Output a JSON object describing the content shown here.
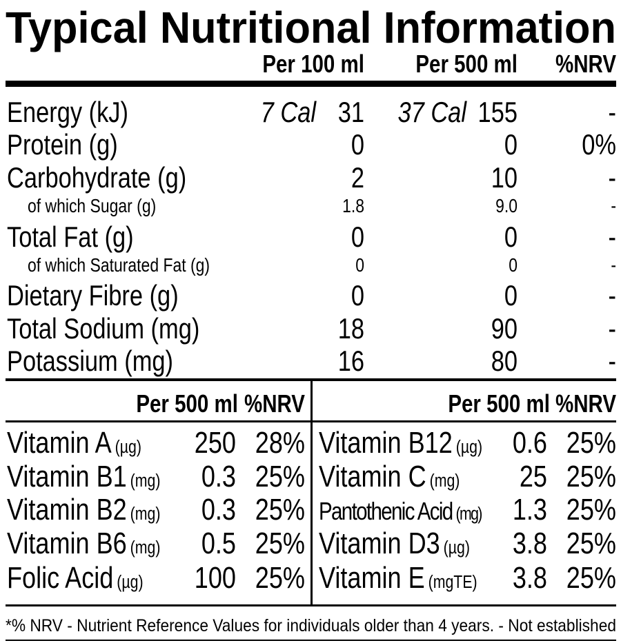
{
  "title": "Typical Nutritional Information",
  "header": {
    "columns": [
      "Per 100 ml",
      "Per 500 ml",
      "%NRV"
    ]
  },
  "rows": [
    {
      "label": "Energy (kJ)",
      "cal_100": "7 Cal",
      "per_100": "31",
      "cal_500": "37 Cal",
      "per_500": "155",
      "nrv": "-"
    },
    {
      "label": "Protein (g)",
      "per_100": "0",
      "per_500": "0",
      "nrv": "0%"
    },
    {
      "label": "Carbohydrate (g)",
      "per_100": "2",
      "per_500": "10",
      "nrv": "-"
    },
    {
      "label": "of which Sugar (g)",
      "per_100": "1.8",
      "per_500": "9.0",
      "nrv": "-",
      "sub": true
    },
    {
      "label": "Total Fat (g)",
      "per_100": "0",
      "per_500": "0",
      "nrv": "-"
    },
    {
      "label": "of which Saturated Fat (g)",
      "per_100": "0",
      "per_500": "0",
      "nrv": "-",
      "sub": true
    },
    {
      "label": "Dietary Fibre (g)",
      "per_100": "0",
      "per_500": "0",
      "nrv": "-"
    },
    {
      "label": "Total Sodium (mg)",
      "per_100": "18",
      "per_500": "90",
      "nrv": "-"
    },
    {
      "label": "Potassium (mg)",
      "per_100": "16",
      "per_500": "80",
      "nrv": "-"
    }
  ],
  "vitamins": {
    "left": {
      "columns": [
        "Per 500 ml",
        "%NRV"
      ],
      "rows": [
        {
          "name": "Vitamin A",
          "unit": "(µg)",
          "per_500": "250",
          "nrv": "28%"
        },
        {
          "name": "Vitamin B1",
          "unit": "(mg)",
          "per_500": "0.3",
          "nrv": "25%"
        },
        {
          "name": "Vitamin B2",
          "unit": "(mg)",
          "per_500": "0.3",
          "nrv": "25%"
        },
        {
          "name": "Vitamin B6",
          "unit": "(mg)",
          "per_500": "0.5",
          "nrv": "25%"
        },
        {
          "name": "Folic Acid",
          "unit": "(µg)",
          "per_500": "100",
          "nrv": "25%"
        }
      ]
    },
    "right": {
      "columns": [
        "Per 500 ml",
        "%NRV"
      ],
      "rows": [
        {
          "name": "Vitamin B12",
          "unit": "(µg)",
          "per_500": "0.6",
          "nrv": "25%"
        },
        {
          "name": "Vitamin C",
          "unit": "(mg)",
          "per_500": "25",
          "nrv": "25%"
        },
        {
          "name": "Pantothenic Acid",
          "unit": "(mg)",
          "per_500": "1.3",
          "nrv": "25%"
        },
        {
          "name": "Vitamin D3",
          "unit": "(µg)",
          "per_500": "3.8",
          "nrv": "25%"
        },
        {
          "name": "Vitamin E",
          "unit": "(mgTE)",
          "per_500": "3.8",
          "nrv": "25%"
        }
      ]
    }
  },
  "footnote": "*% NRV - Nutrient Reference Values for individuals older than 4 years. - Not established"
}
